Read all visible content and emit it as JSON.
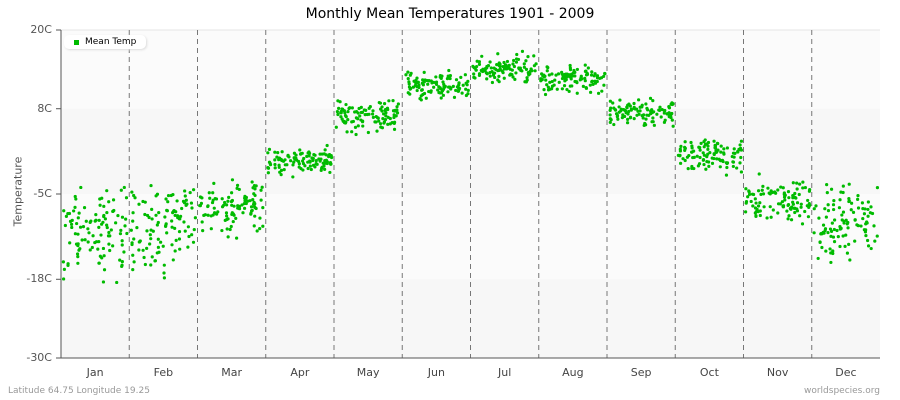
{
  "chart_data": {
    "type": "scatter",
    "title": "Monthly Mean Temperatures 1901 - 2009",
    "xlabel": "",
    "ylabel": "Temperature",
    "ylim": [
      -30,
      20
    ],
    "y_ticks": [
      "20C",
      "8C",
      "-5C",
      "-18C",
      "-30C"
    ],
    "categories": [
      "Jan",
      "Feb",
      "Mar",
      "Apr",
      "May",
      "Jun",
      "Jul",
      "Aug",
      "Sep",
      "Oct",
      "Nov",
      "Dec"
    ],
    "legend": [
      "Mean Temp"
    ],
    "series": [
      {
        "name": "Mean Temp",
        "color": "#00bb00",
        "points_per_month": 109,
        "month_ranges_C": [
          {
            "month": "Jan",
            "min": -21,
            "max": -4,
            "mean": -11
          },
          {
            "month": "Feb",
            "min": -22,
            "max": -3,
            "mean": -10
          },
          {
            "month": "Mar",
            "min": -13,
            "max": -2,
            "mean": -7
          },
          {
            "month": "Apr",
            "min": -3,
            "max": 3,
            "mean": 0
          },
          {
            "month": "May",
            "min": 4,
            "max": 11,
            "mean": 7
          },
          {
            "month": "Jun",
            "min": 9,
            "max": 15,
            "mean": 11.5
          },
          {
            "month": "Jul",
            "min": 12,
            "max": 18,
            "mean": 14
          },
          {
            "month": "Aug",
            "min": 10,
            "max": 16,
            "mean": 12.5
          },
          {
            "month": "Sep",
            "min": 5,
            "max": 11,
            "mean": 7.5
          },
          {
            "month": "Oct",
            "min": -3,
            "max": 5,
            "mean": 1
          },
          {
            "month": "Nov",
            "min": -10,
            "max": -1,
            "mean": -6
          },
          {
            "month": "Dec",
            "min": -19,
            "max": -3,
            "mean": -9.5
          }
        ]
      }
    ]
  },
  "footer": {
    "location": "Latitude 64.75 Longitude 19.25",
    "credit": "worldspecies.org"
  }
}
